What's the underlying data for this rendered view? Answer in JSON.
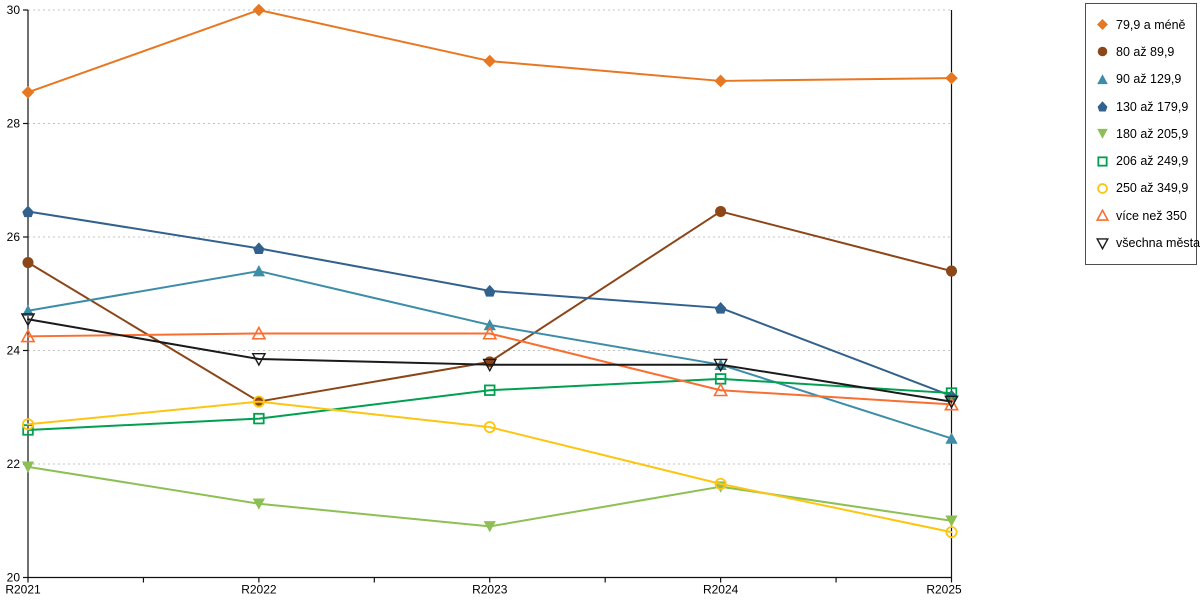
{
  "chart_data": {
    "type": "line",
    "title": "",
    "xlabel": "",
    "ylabel": "",
    "categories": [
      "R2021",
      "R2022",
      "R2023",
      "R2024",
      "R2025"
    ],
    "series": [
      {
        "name": "79,9 a méně",
        "marker": "diamond",
        "color": "#E87722",
        "values": [
          28.55,
          30.0,
          29.1,
          28.75,
          28.8
        ]
      },
      {
        "name": "80 až 89,9",
        "marker": "circle",
        "color": "#8C4617",
        "values": [
          25.55,
          23.1,
          23.8,
          26.45,
          25.4
        ]
      },
      {
        "name": "90 až 129,9",
        "marker": "triangle-up",
        "color": "#3D8DA8",
        "values": [
          24.7,
          25.4,
          24.45,
          23.75,
          22.45
        ]
      },
      {
        "name": "130 až 179,9",
        "marker": "pentagon",
        "color": "#33618D",
        "values": [
          26.45,
          25.8,
          25.05,
          24.75,
          23.2
        ]
      },
      {
        "name": "180 až 205,9",
        "marker": "triangle-down",
        "color": "#8DC054",
        "values": [
          21.95,
          21.3,
          20.9,
          21.6,
          21.0
        ]
      },
      {
        "name": "206 až 249,9",
        "marker": "square-hollow",
        "color": "#00A050",
        "values": [
          22.6,
          22.8,
          23.3,
          23.5,
          23.25
        ]
      },
      {
        "name": "250 až 349,9",
        "marker": "circle-hollow",
        "color": "#FDC511",
        "values": [
          22.7,
          23.1,
          22.65,
          21.65,
          20.8
        ]
      },
      {
        "name": "více než 350",
        "marker": "triangle-up-hollow",
        "color": "#FA6E32",
        "values": [
          24.25,
          24.3,
          24.3,
          23.3,
          23.05
        ]
      },
      {
        "name": "všechna města",
        "marker": "triangle-down-hollow",
        "color": "#1A1A1A",
        "values": [
          24.55,
          23.85,
          23.75,
          23.75,
          23.1
        ]
      }
    ],
    "ylim": [
      20,
      30
    ],
    "yticks": [
      20,
      22,
      24,
      26,
      28,
      30
    ],
    "grid": "horizontal dashed, at each y tick except baseline",
    "legend_position": "top-right, boxed"
  },
  "colors": {
    "background": "#FFFFFF",
    "axis": "#111111",
    "grid": "#C3C3C3",
    "tick_text": "#000000",
    "legend_border": "#4F4F4F"
  }
}
